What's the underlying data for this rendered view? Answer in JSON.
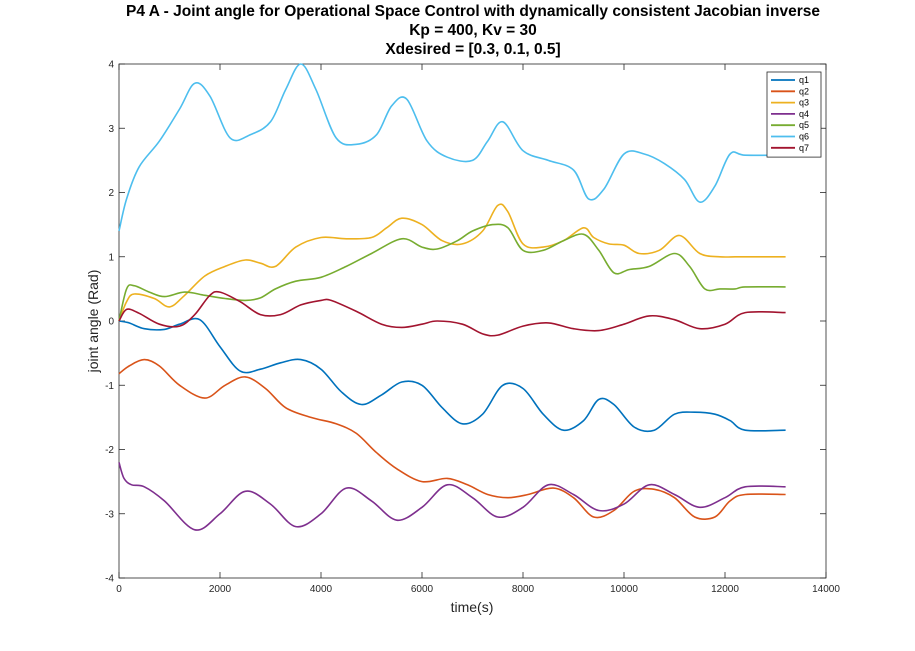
{
  "chart_data": {
    "type": "line",
    "title": [
      "P4 A - Joint angle for Operational Space Control with dynamically consistent Jacobian inverse",
      "Kp = 400, Kv = 30",
      "Xdesired = [0.3, 0.1, 0.5]"
    ],
    "xlabel": "time(s)",
    "ylabel": "joint angle (Rad)",
    "xlim": [
      0,
      14000
    ],
    "ylim": [
      -4,
      4
    ],
    "xticks": [
      0,
      2000,
      4000,
      6000,
      8000,
      10000,
      12000,
      14000
    ],
    "yticks": [
      -4,
      -3,
      -2,
      -1,
      0,
      1,
      2,
      3,
      4
    ],
    "grid": false,
    "legend_position": "top-right",
    "series": [
      {
        "name": "q1",
        "color": "#0072BD",
        "x": [
          0,
          200,
          500,
          900,
          1200,
          1600,
          2000,
          2400,
          2800,
          3200,
          3600,
          4000,
          4400,
          4800,
          5200,
          5600,
          6000,
          6400,
          6800,
          7200,
          7600,
          8000,
          8400,
          8800,
          9200,
          9500,
          9800,
          10200,
          10600,
          11000,
          11400,
          11800,
          12100,
          12400,
          13200
        ],
        "y": [
          0,
          -0.03,
          -0.12,
          -0.13,
          -0.05,
          0.02,
          -0.4,
          -0.78,
          -0.75,
          -0.65,
          -0.6,
          -0.75,
          -1.1,
          -1.3,
          -1.15,
          -0.95,
          -1.0,
          -1.35,
          -1.6,
          -1.45,
          -1.0,
          -1.05,
          -1.45,
          -1.7,
          -1.55,
          -1.22,
          -1.3,
          -1.65,
          -1.7,
          -1.45,
          -1.42,
          -1.45,
          -1.55,
          -1.7,
          -1.7
        ]
      },
      {
        "name": "q2",
        "color": "#D95319",
        "x": [
          0,
          200,
          500,
          800,
          1200,
          1700,
          2100,
          2500,
          2900,
          3300,
          3800,
          4300,
          4700,
          5100,
          5500,
          6000,
          6500,
          6900,
          7300,
          7700,
          8100,
          8600,
          9000,
          9400,
          9800,
          10200,
          10600,
          11000,
          11400,
          11800,
          12100,
          12400,
          13200
        ],
        "y": [
          -0.82,
          -0.7,
          -0.6,
          -0.7,
          -1.0,
          -1.2,
          -1.0,
          -0.87,
          -1.05,
          -1.35,
          -1.5,
          -1.6,
          -1.75,
          -2.05,
          -2.3,
          -2.5,
          -2.45,
          -2.55,
          -2.7,
          -2.75,
          -2.7,
          -2.6,
          -2.75,
          -3.05,
          -2.95,
          -2.65,
          -2.62,
          -2.75,
          -3.05,
          -3.05,
          -2.8,
          -2.7,
          -2.7
        ]
      },
      {
        "name": "q3",
        "color": "#EDB120",
        "x": [
          0,
          150,
          300,
          700,
          1000,
          1300,
          1700,
          2100,
          2500,
          2800,
          3100,
          3500,
          4000,
          4500,
          5000,
          5300,
          5600,
          6000,
          6400,
          6800,
          7200,
          7500,
          7700,
          8000,
          8400,
          8800,
          9200,
          9400,
          9700,
          10000,
          10300,
          10700,
          11100,
          11500,
          11900,
          12200,
          12400,
          13200
        ],
        "y": [
          0,
          0.3,
          0.42,
          0.35,
          0.22,
          0.4,
          0.7,
          0.85,
          0.95,
          0.9,
          0.85,
          1.15,
          1.3,
          1.28,
          1.3,
          1.45,
          1.6,
          1.5,
          1.25,
          1.2,
          1.4,
          1.8,
          1.7,
          1.2,
          1.15,
          1.25,
          1.45,
          1.3,
          1.2,
          1.18,
          1.05,
          1.1,
          1.33,
          1.05,
          1.0,
          1.0,
          1.0,
          1.0
        ]
      },
      {
        "name": "q4",
        "color": "#7E2F8E",
        "x": [
          0,
          100,
          250,
          500,
          900,
          1500,
          2000,
          2500,
          3000,
          3500,
          4000,
          4500,
          5000,
          5500,
          6000,
          6500,
          7000,
          7500,
          8000,
          8500,
          9000,
          9500,
          10000,
          10500,
          11000,
          11500,
          12000,
          12400,
          13200
        ],
        "y": [
          -2.2,
          -2.45,
          -2.55,
          -2.58,
          -2.8,
          -3.25,
          -3.0,
          -2.65,
          -2.85,
          -3.2,
          -3.0,
          -2.6,
          -2.8,
          -3.1,
          -2.9,
          -2.55,
          -2.75,
          -3.05,
          -2.9,
          -2.55,
          -2.7,
          -2.95,
          -2.85,
          -2.55,
          -2.7,
          -2.9,
          -2.75,
          -2.58,
          -2.58
        ]
      },
      {
        "name": "q5",
        "color": "#77AC30",
        "x": [
          0,
          150,
          300,
          600,
          900,
          1300,
          1700,
          2100,
          2500,
          2800,
          3100,
          3500,
          4000,
          4500,
          5000,
          5600,
          6000,
          6300,
          6700,
          7000,
          7400,
          7700,
          8000,
          8400,
          8800,
          9200,
          9500,
          9800,
          10100,
          10500,
          11000,
          11300,
          11600,
          11900,
          12200,
          12400,
          13200
        ],
        "y": [
          0,
          0.5,
          0.55,
          0.45,
          0.38,
          0.45,
          0.4,
          0.35,
          0.32,
          0.36,
          0.5,
          0.62,
          0.68,
          0.85,
          1.05,
          1.28,
          1.15,
          1.12,
          1.25,
          1.4,
          1.5,
          1.45,
          1.1,
          1.1,
          1.25,
          1.35,
          1.1,
          0.75,
          0.8,
          0.85,
          1.05,
          0.85,
          0.5,
          0.5,
          0.5,
          0.53,
          0.53
        ]
      },
      {
        "name": "q6",
        "color": "#4DBEEE",
        "x": [
          0,
          150,
          400,
          800,
          1200,
          1500,
          1800,
          2200,
          2600,
          3000,
          3300,
          3600,
          3900,
          4300,
          4700,
          5100,
          5400,
          5700,
          6100,
          6500,
          7000,
          7300,
          7600,
          8000,
          8500,
          9000,
          9300,
          9600,
          10000,
          10400,
          10800,
          11200,
          11500,
          11800,
          12100,
          12400,
          13200
        ],
        "y": [
          1.4,
          1.9,
          2.4,
          2.8,
          3.3,
          3.7,
          3.5,
          2.85,
          2.9,
          3.1,
          3.6,
          4.0,
          3.6,
          2.85,
          2.75,
          2.9,
          3.35,
          3.45,
          2.8,
          2.55,
          2.5,
          2.8,
          3.1,
          2.65,
          2.5,
          2.35,
          1.9,
          2.05,
          2.6,
          2.6,
          2.45,
          2.2,
          1.85,
          2.1,
          2.6,
          2.58,
          2.58
        ]
      },
      {
        "name": "q7",
        "color": "#A2142F",
        "x": [
          0,
          150,
          400,
          800,
          1200,
          1500,
          1800,
          2000,
          2400,
          2800,
          3200,
          3600,
          4000,
          4200,
          4700,
          5200,
          5600,
          6000,
          6300,
          6800,
          7200,
          7500,
          8000,
          8500,
          9000,
          9500,
          10000,
          10500,
          11000,
          11500,
          12000,
          12400,
          13200
        ],
        "y": [
          0,
          0.18,
          0.12,
          -0.05,
          -0.08,
          0.1,
          0.4,
          0.45,
          0.3,
          0.1,
          0.1,
          0.25,
          0.32,
          0.32,
          0.15,
          -0.05,
          -0.1,
          -0.05,
          0.0,
          -0.05,
          -0.2,
          -0.22,
          -0.08,
          -0.03,
          -0.12,
          -0.15,
          -0.05,
          0.08,
          0.02,
          -0.12,
          -0.05,
          0.13,
          0.13
        ]
      }
    ]
  }
}
